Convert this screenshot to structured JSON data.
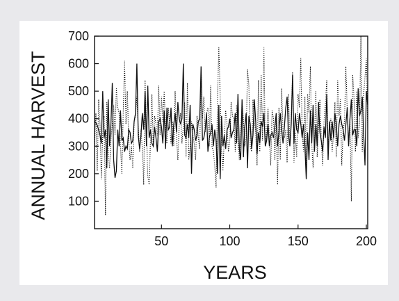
{
  "chart_data": {
    "type": "line",
    "title": "",
    "xlabel": "YEARS",
    "ylabel": "ANNUAL HARVEST",
    "xlim": [
      1,
      201
    ],
    "ylim": [
      0,
      700
    ],
    "x_ticks": [
      50,
      100,
      150,
      200
    ],
    "y_ticks": [
      100,
      200,
      300,
      400,
      500,
      600,
      700
    ],
    "grid": false,
    "legend": "none",
    "series": [
      {
        "style": "solid",
        "color": "#111111",
        "x_start": 1,
        "values": [
          390,
          385,
          375,
          360,
          340,
          310,
          500,
          330,
          360,
          220,
          470,
          300,
          380,
          530,
          250,
          185,
          210,
          360,
          300,
          430,
          320,
          330,
          280,
          300,
          290,
          360,
          350,
          310,
          320,
          390,
          420,
          600,
          340,
          290,
          340,
          420,
          360,
          500,
          300,
          520,
          330,
          360,
          310,
          300,
          370,
          330,
          280,
          390,
          400,
          370,
          310,
          430,
          290,
          440,
          360,
          370,
          440,
          300,
          380,
          420,
          350,
          460,
          400,
          380,
          400,
          600,
          340,
          330,
          380,
          330,
          450,
          200,
          380,
          360,
          320,
          340,
          390,
          400,
          590,
          320,
          330,
          360,
          420,
          280,
          330,
          350,
          380,
          300,
          360,
          320,
          200,
          450,
          180,
          410,
          300,
          340,
          290,
          360,
          370,
          400,
          330,
          350,
          360,
          420,
          310,
          490,
          290,
          250,
          470,
          260,
          370,
          420,
          220,
          410,
          380,
          290,
          340,
          470,
          390,
          270,
          350,
          310,
          390,
          370,
          420,
          300,
          320,
          380,
          300,
          340,
          350,
          330,
          370,
          420,
          300,
          350,
          420,
          360,
          310,
          370,
          440,
          480,
          340,
          300,
          380,
          560,
          310,
          420,
          360,
          350,
          420,
          380,
          330,
          380,
          300,
          180,
          350,
          250,
          430,
          310,
          450,
          280,
          380,
          300,
          460,
          350,
          320,
          280,
          370,
          330,
          490,
          250,
          390,
          320,
          390,
          330,
          420,
          380,
          300,
          380,
          410,
          380,
          360,
          320,
          380,
          440,
          300,
          400,
          470,
          340,
          360,
          360,
          300,
          510,
          410,
          430,
          480,
          350,
          230,
          500,
          450
        ]
      },
      {
        "style": "dotted",
        "color": "#111111",
        "x_start": 1,
        "values": [
          300,
          420,
          210,
          470,
          380,
          180,
          350,
          410,
          50,
          460,
          270,
          220,
          320,
          380,
          450,
          340,
          510,
          440,
          420,
          300,
          200,
          420,
          610,
          380,
          500,
          330,
          250,
          300,
          220,
          390,
          410,
          480,
          370,
          280,
          360,
          290,
          160,
          540,
          360,
          190,
          160,
          330,
          490,
          300,
          410,
          380,
          340,
          520,
          340,
          480,
          390,
          500,
          360,
          310,
          440,
          380,
          310,
          390,
          300,
          500,
          340,
          250,
          380,
          420,
          310,
          370,
          460,
          260,
          530,
          250,
          300,
          390,
          340,
          310,
          250,
          410,
          330,
          290,
          580,
          400,
          480,
          350,
          420,
          440,
          300,
          520,
          300,
          280,
          230,
          150,
          460,
          660,
          480,
          290,
          210,
          330,
          430,
          380,
          280,
          320,
          460,
          410,
          400,
          280,
          450,
          320,
          250,
          350,
          460,
          400,
          300,
          330,
          580,
          520,
          300,
          280,
          470,
          390,
          350,
          230,
          540,
          280,
          560,
          320,
          660,
          300,
          350,
          440,
          320,
          230,
          430,
          400,
          250,
          400,
          160,
          440,
          250,
          510,
          350,
          330,
          360,
          240,
          490,
          310,
          400,
          570,
          240,
          350,
          260,
          490,
          440,
          620,
          350,
          280,
          480,
          200,
          490,
          420,
          590,
          310,
          220,
          320,
          500,
          260,
          380,
          470,
          330,
          230,
          390,
          450,
          540,
          300,
          380,
          400,
          280,
          350,
          460,
          260,
          540,
          410,
          470,
          230,
          360,
          390,
          590,
          430,
          310,
          400,
          100,
          560,
          470,
          280,
          500,
          330,
          380,
          700,
          280,
          490,
          550,
          620,
          360
        ]
      }
    ]
  }
}
